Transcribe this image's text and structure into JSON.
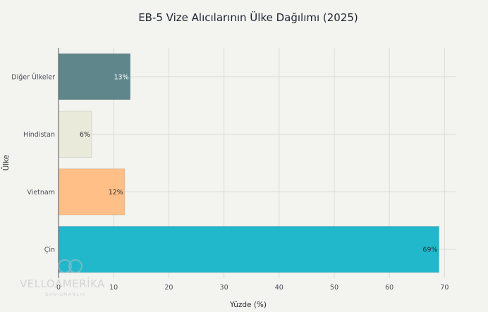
{
  "chart_data": {
    "type": "bar",
    "orientation": "horizontal",
    "title": "EB-5 Vize Alıcılarının Ülke Dağılımı (2025)",
    "xlabel": "Yüzde (%)",
    "ylabel": "Ülke",
    "categories": [
      "Diğer Ülkeler",
      "Hindistan",
      "Vietnam",
      "Çin"
    ],
    "values": [
      13,
      6,
      12,
      69
    ],
    "value_labels": [
      "13%",
      "6%",
      "12%",
      "69%"
    ],
    "colors": [
      "#5f878b",
      "#eaeadb",
      "#ffbf87",
      "#21b8cc"
    ],
    "label_colors": [
      "#ffffff",
      "#2b2f36",
      "#2b2f36",
      "#2b2f36"
    ],
    "xlim": [
      0,
      72
    ],
    "xticks": [
      0,
      10,
      20,
      30,
      40,
      50,
      60,
      70
    ],
    "grid": true,
    "legend": "none"
  },
  "watermark": {
    "brand": "VELLOAMERİKA",
    "sub": "DANIŞMANLIK"
  }
}
